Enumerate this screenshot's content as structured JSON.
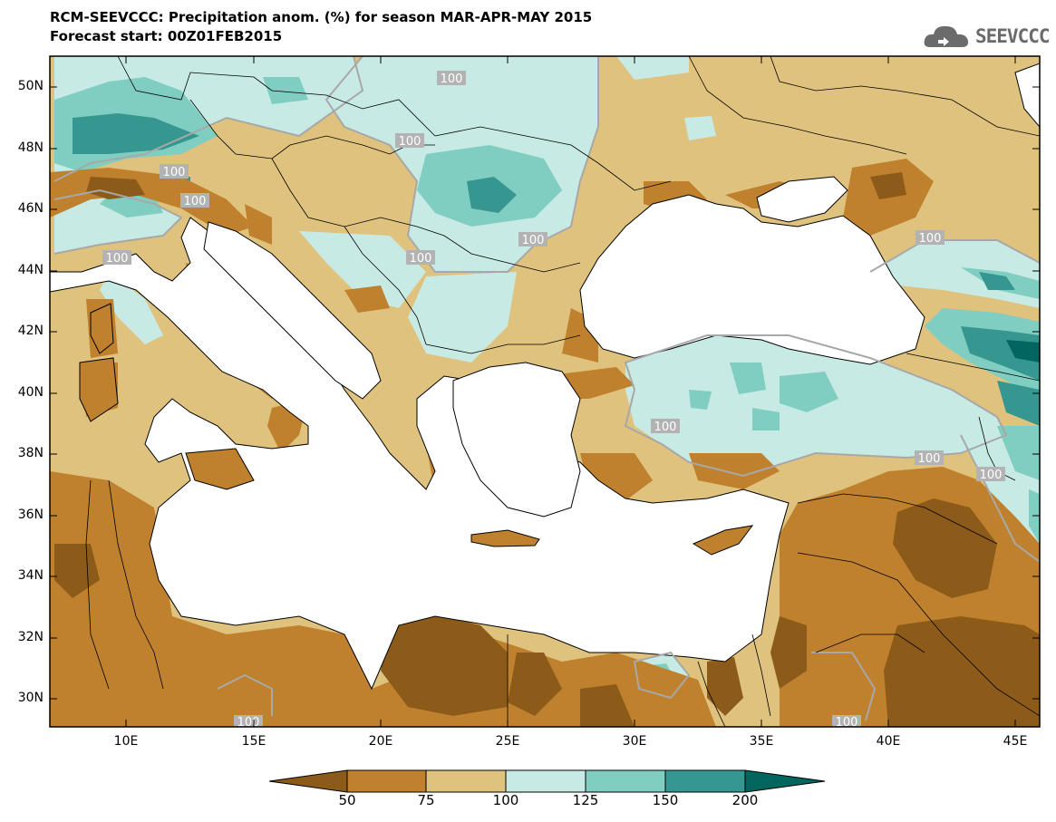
{
  "header": {
    "title": "RCM-SEEVCCC: Precipitation anom. (%) for season MAR-APR-MAY 2015",
    "subtitle": "Forecast start: 00Z01FEB2015",
    "logo_text": "SEEVCCC"
  },
  "map": {
    "variable": "Precipitation anomaly (%)",
    "season": "MAR-APR-MAY 2015",
    "lon_range": [
      7,
      46
    ],
    "lat_range": [
      29,
      51
    ],
    "lat_ticks": [
      "30N",
      "32N",
      "34N",
      "36N",
      "38N",
      "40N",
      "42N",
      "44N",
      "46N",
      "48N",
      "50N"
    ],
    "lon_ticks": [
      "10E",
      "15E",
      "20E",
      "25E",
      "30E",
      "35E",
      "40E",
      "45E"
    ],
    "contour_label": "100"
  },
  "colorbar": {
    "labels": [
      "50",
      "75",
      "100",
      "125",
      "150",
      "200"
    ],
    "colors": [
      "#8c5a19",
      "#bf812d",
      "#dfc27d",
      "#c7eae5",
      "#80cdc1",
      "#35978f",
      "#01665e"
    ]
  }
}
